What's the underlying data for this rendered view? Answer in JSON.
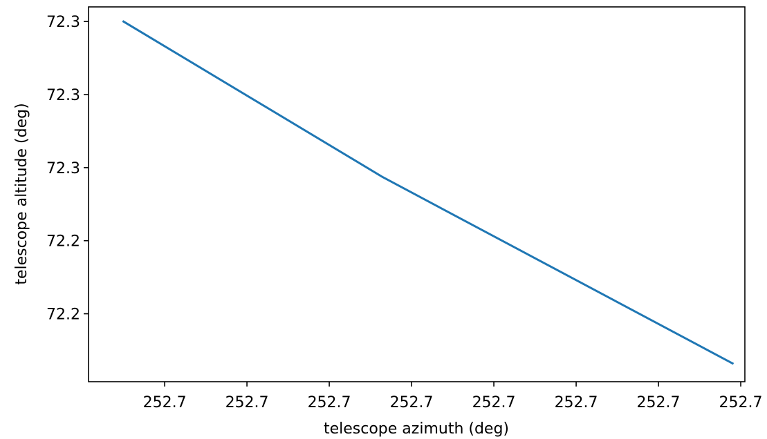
{
  "chart_data": {
    "type": "line",
    "title": "",
    "xlabel": "telescope azimuth (deg)",
    "ylabel": "telescope altitude (deg)",
    "x_tick_values": [
      0.5,
      1.5,
      2.5,
      3.5,
      4.5,
      5.5,
      6.5,
      7.5
    ],
    "x_tick_labels": [
      "252.7",
      "252.7",
      "252.7",
      "252.7",
      "252.7",
      "252.7",
      "252.7",
      "252.7"
    ],
    "y_tick_values": [
      0,
      1,
      2,
      3,
      4
    ],
    "y_tick_labels": [
      "72.2",
      "72.2",
      "72.3",
      "72.3",
      "72.3"
    ],
    "xlim": [
      -0.425,
      7.55
    ],
    "ylim": [
      -0.93,
      4.2
    ],
    "grid": false,
    "series": [
      {
        "color": "#1f77b4",
        "x": [
          0,
          3.15,
          7.4
        ],
        "y": [
          4.0,
          1.87,
          -0.68
        ]
      }
    ]
  }
}
